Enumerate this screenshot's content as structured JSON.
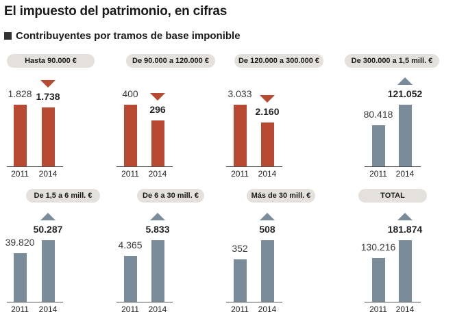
{
  "title": "El impuesto del patrimonio, en cifras",
  "subtitle": "Contribuyentes por tramos de base imponible",
  "colors": {
    "decrease": "#b84a33",
    "increase": "#7a8b99"
  },
  "chart_data": [
    {
      "type": "bar",
      "title": "Hasta 90.000 €",
      "categories": [
        "2011",
        "2014"
      ],
      "values": [
        1828,
        1738
      ],
      "labels": [
        "1.828",
        "1.738"
      ],
      "trend": "down"
    },
    {
      "type": "bar",
      "title": "De 90.000 a 120.000 €",
      "categories": [
        "2011",
        "2014"
      ],
      "values": [
        400,
        296
      ],
      "labels": [
        "400",
        "296"
      ],
      "trend": "down"
    },
    {
      "type": "bar",
      "title": "De 120.000 a 300.000 €",
      "categories": [
        "2011",
        "2014"
      ],
      "values": [
        3033,
        2160
      ],
      "labels": [
        "3.033",
        "2.160"
      ],
      "trend": "down"
    },
    {
      "type": "bar",
      "title": "De 300.000 a 1,5 mill. €",
      "categories": [
        "2011",
        "2014"
      ],
      "values": [
        80418,
        121052
      ],
      "labels": [
        "80.418",
        "121.052"
      ],
      "trend": "up"
    },
    {
      "type": "bar",
      "title": "De 1,5 a 6 mill. €",
      "categories": [
        "2011",
        "2014"
      ],
      "values": [
        39820,
        50287
      ],
      "labels": [
        "39.820",
        "50.287"
      ],
      "trend": "up"
    },
    {
      "type": "bar",
      "title": "De 6 a 30 mill. €",
      "categories": [
        "2011",
        "2014"
      ],
      "values": [
        4365,
        5833
      ],
      "labels": [
        "4.365",
        "5.833"
      ],
      "trend": "up"
    },
    {
      "type": "bar",
      "title": "Más de 30 mill. €",
      "categories": [
        "2011",
        "2014"
      ],
      "values": [
        352,
        508
      ],
      "labels": [
        "352",
        "508"
      ],
      "trend": "up"
    },
    {
      "type": "bar",
      "title": "TOTAL",
      "categories": [
        "2011",
        "2014"
      ],
      "values": [
        130216,
        181874
      ],
      "labels": [
        "130.216",
        "181.874"
      ],
      "trend": "up"
    }
  ]
}
